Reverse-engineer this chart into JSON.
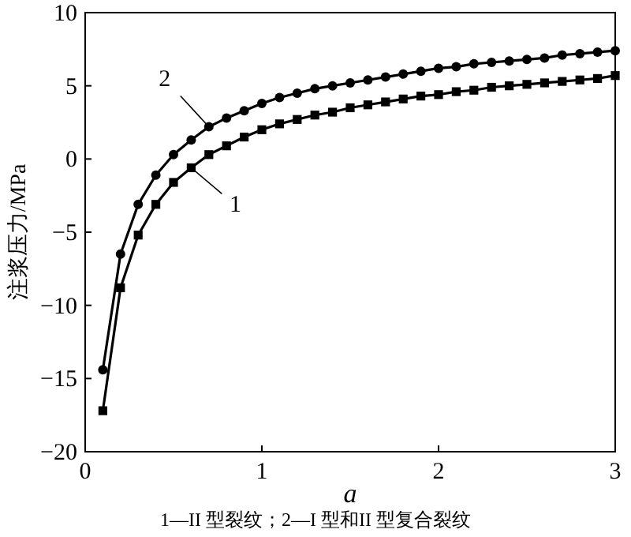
{
  "chart_data": {
    "type": "line",
    "xlabel": "a",
    "ylabel": "注浆压力/MPa",
    "xlim": [
      0,
      3
    ],
    "ylim": [
      -20,
      10
    ],
    "xticks": [
      0,
      1,
      2,
      3
    ],
    "yticks": [
      -20,
      -15,
      -10,
      -5,
      0,
      5,
      10
    ],
    "grid": false,
    "line_style": "solid",
    "x": [
      0.1,
      0.2,
      0.3,
      0.4,
      0.5,
      0.6,
      0.7,
      0.8,
      0.9,
      1.0,
      1.1,
      1.2,
      1.3,
      1.4,
      1.5,
      1.6,
      1.7,
      1.8,
      1.9,
      2.0,
      2.1,
      2.2,
      2.3,
      2.4,
      2.5,
      2.6,
      2.7,
      2.8,
      2.9,
      3.0
    ],
    "series": [
      {
        "color": "#000000",
        "marker": "square",
        "values": [
          -17.2,
          -8.8,
          -5.2,
          -3.1,
          -1.6,
          -0.6,
          0.3,
          0.9,
          1.5,
          2.0,
          2.4,
          2.7,
          3.0,
          3.2,
          3.5,
          3.7,
          3.9,
          4.1,
          4.3,
          4.4,
          4.6,
          4.7,
          4.9,
          5.0,
          5.1,
          5.2,
          5.3,
          5.4,
          5.5,
          5.7
        ]
      },
      {
        "color": "#000000",
        "marker": "circle",
        "values": [
          -14.4,
          -6.5,
          -3.1,
          -1.1,
          0.3,
          1.3,
          2.2,
          2.8,
          3.3,
          3.8,
          4.2,
          4.5,
          4.8,
          5.0,
          5.2,
          5.4,
          5.6,
          5.8,
          6.0,
          6.2,
          6.3,
          6.5,
          6.6,
          6.7,
          6.8,
          6.9,
          7.1,
          7.2,
          7.3,
          7.4
        ]
      }
    ],
    "annotations": [
      {
        "text": "1",
        "x": 0.6,
        "y": -0.6
      },
      {
        "text": "2",
        "x": 0.7,
        "y": 2.2
      },
      "1—II 型裂纹；2—I 型和II 型复合裂纹"
    ]
  }
}
